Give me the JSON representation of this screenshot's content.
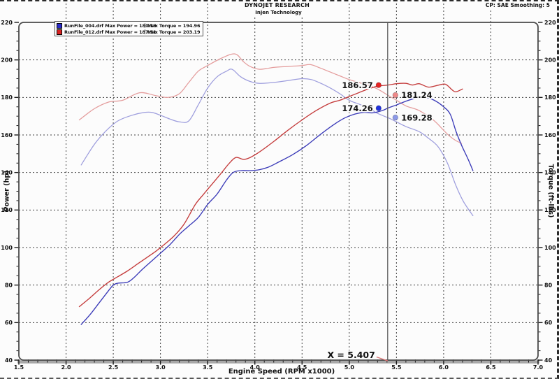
{
  "header": {
    "title": "DYNOJET RESEARCH",
    "subtitle": "Injen Technology",
    "right_info": "CP: SAE  Smoothing: 5"
  },
  "chart_data": {
    "type": "line",
    "title": "",
    "xlabel": "Engine Speed (RPM x1000)",
    "ylabel_left": "Power (hp)",
    "ylabel_right": "Torque (ft-lbs)",
    "xlim": [
      1.5,
      7.0
    ],
    "ylim": [
      40,
      220
    ],
    "x_major_step": 0.5,
    "x_minor_step": 0.1,
    "y_major_step": 20,
    "y_minor_step": 5,
    "grid": "dashed-major",
    "legend_position": "top-left-inside",
    "legend_labels": {
      "power_prefix": "Max Power =",
      "torque_prefix": "Max Torque ="
    },
    "legend": [
      {
        "file": "RunFile_004.drf",
        "max_power": "180.16",
        "max_torque": "194.96",
        "swatch_color": "#2a2ac8"
      },
      {
        "file": "RunFile_012.drf",
        "max_power": "187.51",
        "max_torque": "203.19",
        "swatch_color": "#d82222"
      }
    ],
    "colors": {
      "grid": "#3f3f3f",
      "frame": "#4a4a4a",
      "axis_band": "#a8a8a8",
      "tick": "#1a1a1a",
      "text": "#111111"
    },
    "series": [
      {
        "name": "torque-run004",
        "color": "#9d9ddd",
        "width": 1.25,
        "points": [
          [
            2.16,
            144
          ],
          [
            2.3,
            155
          ],
          [
            2.42,
            162
          ],
          [
            2.55,
            167.5
          ],
          [
            2.7,
            170.5
          ],
          [
            2.83,
            172
          ],
          [
            2.91,
            172
          ],
          [
            3.0,
            170.5
          ],
          [
            3.1,
            168.5
          ],
          [
            3.2,
            167
          ],
          [
            3.3,
            167.5
          ],
          [
            3.4,
            176
          ],
          [
            3.5,
            185
          ],
          [
            3.6,
            191
          ],
          [
            3.7,
            194
          ],
          [
            3.76,
            194.96
          ],
          [
            3.85,
            191
          ],
          [
            3.95,
            188.5
          ],
          [
            4.05,
            187.5
          ],
          [
            4.2,
            188
          ],
          [
            4.35,
            189
          ],
          [
            4.5,
            190
          ],
          [
            4.6,
            189.5
          ],
          [
            4.7,
            187.5
          ],
          [
            4.8,
            185
          ],
          [
            4.9,
            182
          ],
          [
            5.0,
            178.5
          ],
          [
            5.1,
            176.5
          ],
          [
            5.2,
            174.5
          ],
          [
            5.3,
            171.5
          ],
          [
            5.407,
            169.28
          ],
          [
            5.5,
            167
          ],
          [
            5.6,
            164.5
          ],
          [
            5.74,
            161.8
          ],
          [
            5.84,
            158.2
          ],
          [
            5.94,
            153.8
          ],
          [
            6.04,
            145
          ],
          [
            6.13,
            133
          ],
          [
            6.21,
            124.5
          ],
          [
            6.31,
            117
          ]
        ]
      },
      {
        "name": "torque-run012",
        "color": "#e49c9c",
        "width": 1.25,
        "points": [
          [
            2.14,
            168
          ],
          [
            2.3,
            174
          ],
          [
            2.45,
            177.5
          ],
          [
            2.6,
            178.5
          ],
          [
            2.78,
            182.5
          ],
          [
            2.95,
            181
          ],
          [
            3.08,
            180
          ],
          [
            3.2,
            182
          ],
          [
            3.3,
            188
          ],
          [
            3.4,
            194
          ],
          [
            3.5,
            197
          ],
          [
            3.65,
            201
          ],
          [
            3.79,
            203.19
          ],
          [
            3.88,
            199
          ],
          [
            3.95,
            196.5
          ],
          [
            4.05,
            195
          ],
          [
            4.2,
            196
          ],
          [
            4.35,
            196.5
          ],
          [
            4.5,
            197
          ],
          [
            4.59,
            197.5
          ],
          [
            4.7,
            195.5
          ],
          [
            4.8,
            193.5
          ],
          [
            4.9,
            191.5
          ],
          [
            5.0,
            189.5
          ],
          [
            5.1,
            188
          ],
          [
            5.2,
            186.5
          ],
          [
            5.3,
            184.5
          ],
          [
            5.407,
            181.24
          ],
          [
            5.5,
            178.5
          ],
          [
            5.6,
            175.5
          ],
          [
            5.74,
            173
          ],
          [
            5.89,
            168
          ],
          [
            5.99,
            163
          ],
          [
            6.06,
            159.5
          ],
          [
            6.13,
            157
          ],
          [
            6.19,
            155.5
          ]
        ]
      },
      {
        "name": "power-run004",
        "color": "#3a3ab8",
        "width": 1.35,
        "points": [
          [
            2.16,
            59
          ],
          [
            2.25,
            64
          ],
          [
            2.35,
            70.5
          ],
          [
            2.45,
            77
          ],
          [
            2.5,
            80
          ],
          [
            2.55,
            81
          ],
          [
            2.65,
            81.5
          ],
          [
            2.72,
            84
          ],
          [
            2.8,
            88
          ],
          [
            2.9,
            92.5
          ],
          [
            3.0,
            97
          ],
          [
            3.1,
            101.5
          ],
          [
            3.2,
            107
          ],
          [
            3.3,
            111.5
          ],
          [
            3.4,
            116
          ],
          [
            3.5,
            123
          ],
          [
            3.6,
            128.5
          ],
          [
            3.7,
            136
          ],
          [
            3.77,
            140
          ],
          [
            3.85,
            141
          ],
          [
            3.95,
            141
          ],
          [
            4.05,
            141.5
          ],
          [
            4.15,
            143
          ],
          [
            4.25,
            145.5
          ],
          [
            4.4,
            149.5
          ],
          [
            4.55,
            154.5
          ],
          [
            4.7,
            160.5
          ],
          [
            4.85,
            166
          ],
          [
            4.95,
            169
          ],
          [
            5.05,
            171
          ],
          [
            5.15,
            172
          ],
          [
            5.25,
            171.8
          ],
          [
            5.35,
            173
          ],
          [
            5.407,
            174.26
          ],
          [
            5.5,
            176
          ],
          [
            5.6,
            178
          ],
          [
            5.7,
            179.5
          ],
          [
            5.8,
            180.16
          ],
          [
            5.9,
            178.5
          ],
          [
            6.0,
            175
          ],
          [
            6.07,
            171
          ],
          [
            6.13,
            162
          ],
          [
            6.19,
            154.5
          ],
          [
            6.26,
            147
          ],
          [
            6.31,
            141
          ]
        ]
      },
      {
        "name": "power-run012",
        "color": "#c43b3b",
        "width": 1.35,
        "points": [
          [
            2.14,
            68.5
          ],
          [
            2.25,
            73
          ],
          [
            2.35,
            77.5
          ],
          [
            2.45,
            81.5
          ],
          [
            2.55,
            84.5
          ],
          [
            2.65,
            87.5
          ],
          [
            2.75,
            91
          ],
          [
            2.85,
            94.5
          ],
          [
            2.95,
            98
          ],
          [
            3.05,
            102
          ],
          [
            3.15,
            106.5
          ],
          [
            3.25,
            112.5
          ],
          [
            3.37,
            123
          ],
          [
            3.45,
            128
          ],
          [
            3.55,
            134
          ],
          [
            3.65,
            140
          ],
          [
            3.73,
            145
          ],
          [
            3.8,
            148
          ],
          [
            3.88,
            147
          ],
          [
            3.95,
            148
          ],
          [
            4.05,
            151
          ],
          [
            4.2,
            156.5
          ],
          [
            4.35,
            162.5
          ],
          [
            4.5,
            168
          ],
          [
            4.65,
            173
          ],
          [
            4.8,
            177
          ],
          [
            4.9,
            178.5
          ],
          [
            5.0,
            180.5
          ],
          [
            5.1,
            182.5
          ],
          [
            5.2,
            184.5
          ],
          [
            5.3,
            186
          ],
          [
            5.407,
            186.57
          ],
          [
            5.5,
            187.3
          ],
          [
            5.6,
            187.51
          ],
          [
            5.67,
            186.6
          ],
          [
            5.74,
            187.3
          ],
          [
            5.84,
            185.5
          ],
          [
            5.94,
            186.5
          ],
          [
            6.02,
            187
          ],
          [
            6.09,
            184
          ],
          [
            6.13,
            183
          ],
          [
            6.2,
            184.5
          ]
        ]
      }
    ],
    "cursor": {
      "x": 5.407,
      "label": "X = 5.407",
      "line_color": "#5a5a5a",
      "callout_color": "#d87070"
    },
    "markers": [
      {
        "label": "186.57",
        "value": 186.57,
        "series": "power-run012",
        "side": "left",
        "dot_color": "#e62222"
      },
      {
        "label": "181.24",
        "value": 181.24,
        "series": "torque-run012",
        "side": "right",
        "dot_color": "#ee8888"
      },
      {
        "label": "174.26",
        "value": 174.26,
        "series": "power-run004",
        "side": "left",
        "dot_color": "#2233dd"
      },
      {
        "label": "169.28",
        "value": 169.28,
        "series": "torque-run004",
        "side": "right",
        "dot_color": "#8c99e8"
      }
    ]
  }
}
